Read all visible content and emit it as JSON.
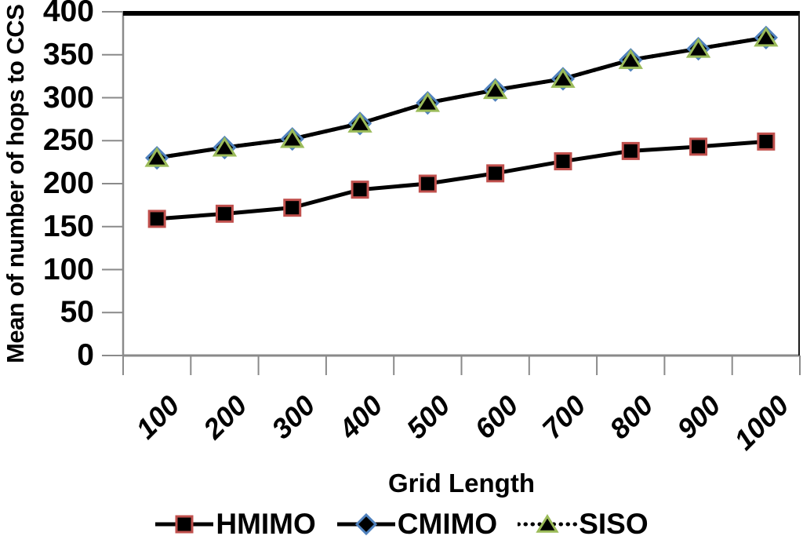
{
  "chart_data": {
    "type": "line",
    "title": "",
    "xlabel": "Grid Length",
    "ylabel": "Mean of number of hops to CCS",
    "categories": [
      100,
      200,
      300,
      400,
      500,
      600,
      700,
      800,
      900,
      1000
    ],
    "yticks": [
      0,
      50,
      100,
      150,
      200,
      250,
      300,
      350,
      400
    ],
    "ylim": [
      0,
      400
    ],
    "grid": false,
    "legend_position": "bottom",
    "line_color": "#000000",
    "axis_color": "#8a8a8a",
    "plot_border_color": "#1a1a1a",
    "series": [
      {
        "name": "HMIMO",
        "marker": "square",
        "marker_fill": "#000000",
        "marker_border": "#C0504D",
        "line_style": "solid",
        "values": [
          159,
          165,
          172,
          193,
          200,
          212,
          226,
          238,
          243,
          249
        ]
      },
      {
        "name": "CMIMO",
        "marker": "diamond",
        "marker_fill": "#000000",
        "marker_border": "#4F81BD",
        "line_style": "solid",
        "values": [
          230,
          242,
          252,
          270,
          294,
          309,
          322,
          344,
          357,
          370
        ]
      },
      {
        "name": "SISO",
        "marker": "triangle",
        "marker_fill": "#000000",
        "marker_border": "#9BBB59",
        "line_style": "dotted",
        "values": [
          230,
          242,
          252,
          270,
          294,
          309,
          322,
          344,
          357,
          370
        ]
      }
    ]
  }
}
